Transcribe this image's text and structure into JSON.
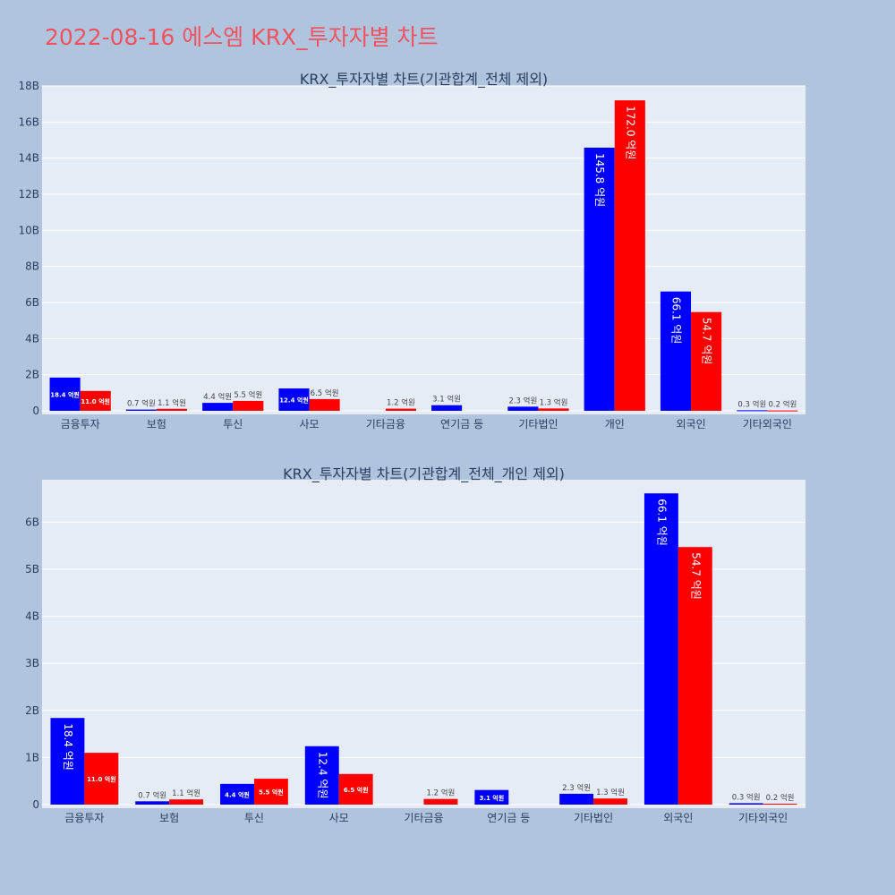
{
  "title": "2022-08-16 에스엠 KRX_투자자별 차트",
  "colors": {
    "buy": "#0000ff",
    "sell": "#ff0000",
    "panel_bg": "#e5ecf6",
    "page_bg": "#b0c4de",
    "title": "#ef5360"
  },
  "chart_data": [
    {
      "type": "bar",
      "title": "KRX_투자자별 차트(기관합계_전체 제외)",
      "categories": [
        "금융투자",
        "보험",
        "투신",
        "사모",
        "기타금융",
        "연기금 등",
        "기타법인",
        "개인",
        "외국인",
        "기타외국인"
      ],
      "ylim": [
        0,
        18000000000
      ],
      "yticks": [
        {
          "v": 0,
          "label": "0"
        },
        {
          "v": 2000000000,
          "label": "2B"
        },
        {
          "v": 4000000000,
          "label": "4B"
        },
        {
          "v": 6000000000,
          "label": "6B"
        },
        {
          "v": 8000000000,
          "label": "8B"
        },
        {
          "v": 10000000000,
          "label": "10B"
        },
        {
          "v": 12000000000,
          "label": "12B"
        },
        {
          "v": 14000000000,
          "label": "14B"
        },
        {
          "v": 16000000000,
          "label": "16B"
        },
        {
          "v": 18000000000,
          "label": "18B"
        }
      ],
      "series": [
        {
          "values": [
            1840000000,
            70000000,
            440000000,
            1240000000,
            0,
            310000000,
            230000000,
            14580000000,
            6610000000,
            30000000
          ],
          "labels": [
            "18.4 억원",
            "0.7 억원",
            "4.4 억원",
            "12.4 억원",
            "",
            "3.1 억원",
            "2.3 억원",
            "145.8 억원",
            "66.1 억원",
            "0.3 억원"
          ]
        },
        {
          "values": [
            1100000000,
            110000000,
            550000000,
            650000000,
            120000000,
            0,
            130000000,
            17200000000,
            5470000000,
            20000000
          ],
          "labels": [
            "11.0 억원",
            "1.1 억원",
            "5.5 억원",
            "6.5 억원",
            "1.2 억원",
            "",
            "1.3 억원",
            "172.0 억원",
            "54.7 억원",
            "0.2 억원"
          ]
        }
      ]
    },
    {
      "type": "bar",
      "title": "KRX_투자자별 차트(기관합계_전체_개인 제외)",
      "categories": [
        "금융투자",
        "보험",
        "투신",
        "사모",
        "기타금융",
        "연기금 등",
        "기타법인",
        "외국인",
        "기타외국인"
      ],
      "ylim": [
        0,
        6900000000
      ],
      "yticks": [
        {
          "v": 0,
          "label": "0"
        },
        {
          "v": 1000000000,
          "label": "1B"
        },
        {
          "v": 2000000000,
          "label": "2B"
        },
        {
          "v": 3000000000,
          "label": "3B"
        },
        {
          "v": 4000000000,
          "label": "4B"
        },
        {
          "v": 5000000000,
          "label": "5B"
        },
        {
          "v": 6000000000,
          "label": "6B"
        }
      ],
      "series": [
        {
          "values": [
            1840000000,
            70000000,
            440000000,
            1240000000,
            0,
            310000000,
            230000000,
            6610000000,
            30000000
          ],
          "labels": [
            "18.4 억원",
            "0.7 억원",
            "4.4 억원",
            "12.4 억원",
            "",
            "3.1 억원",
            "2.3 억원",
            "66.1 억원",
            "0.3 억원"
          ]
        },
        {
          "values": [
            1100000000,
            110000000,
            550000000,
            650000000,
            120000000,
            0,
            130000000,
            5470000000,
            20000000
          ],
          "labels": [
            "11.0 억원",
            "1.1 억원",
            "5.5 억원",
            "6.5 억원",
            "1.2 억원",
            "",
            "1.3 억원",
            "54.7 억원",
            "0.2 억원"
          ]
        }
      ]
    }
  ]
}
